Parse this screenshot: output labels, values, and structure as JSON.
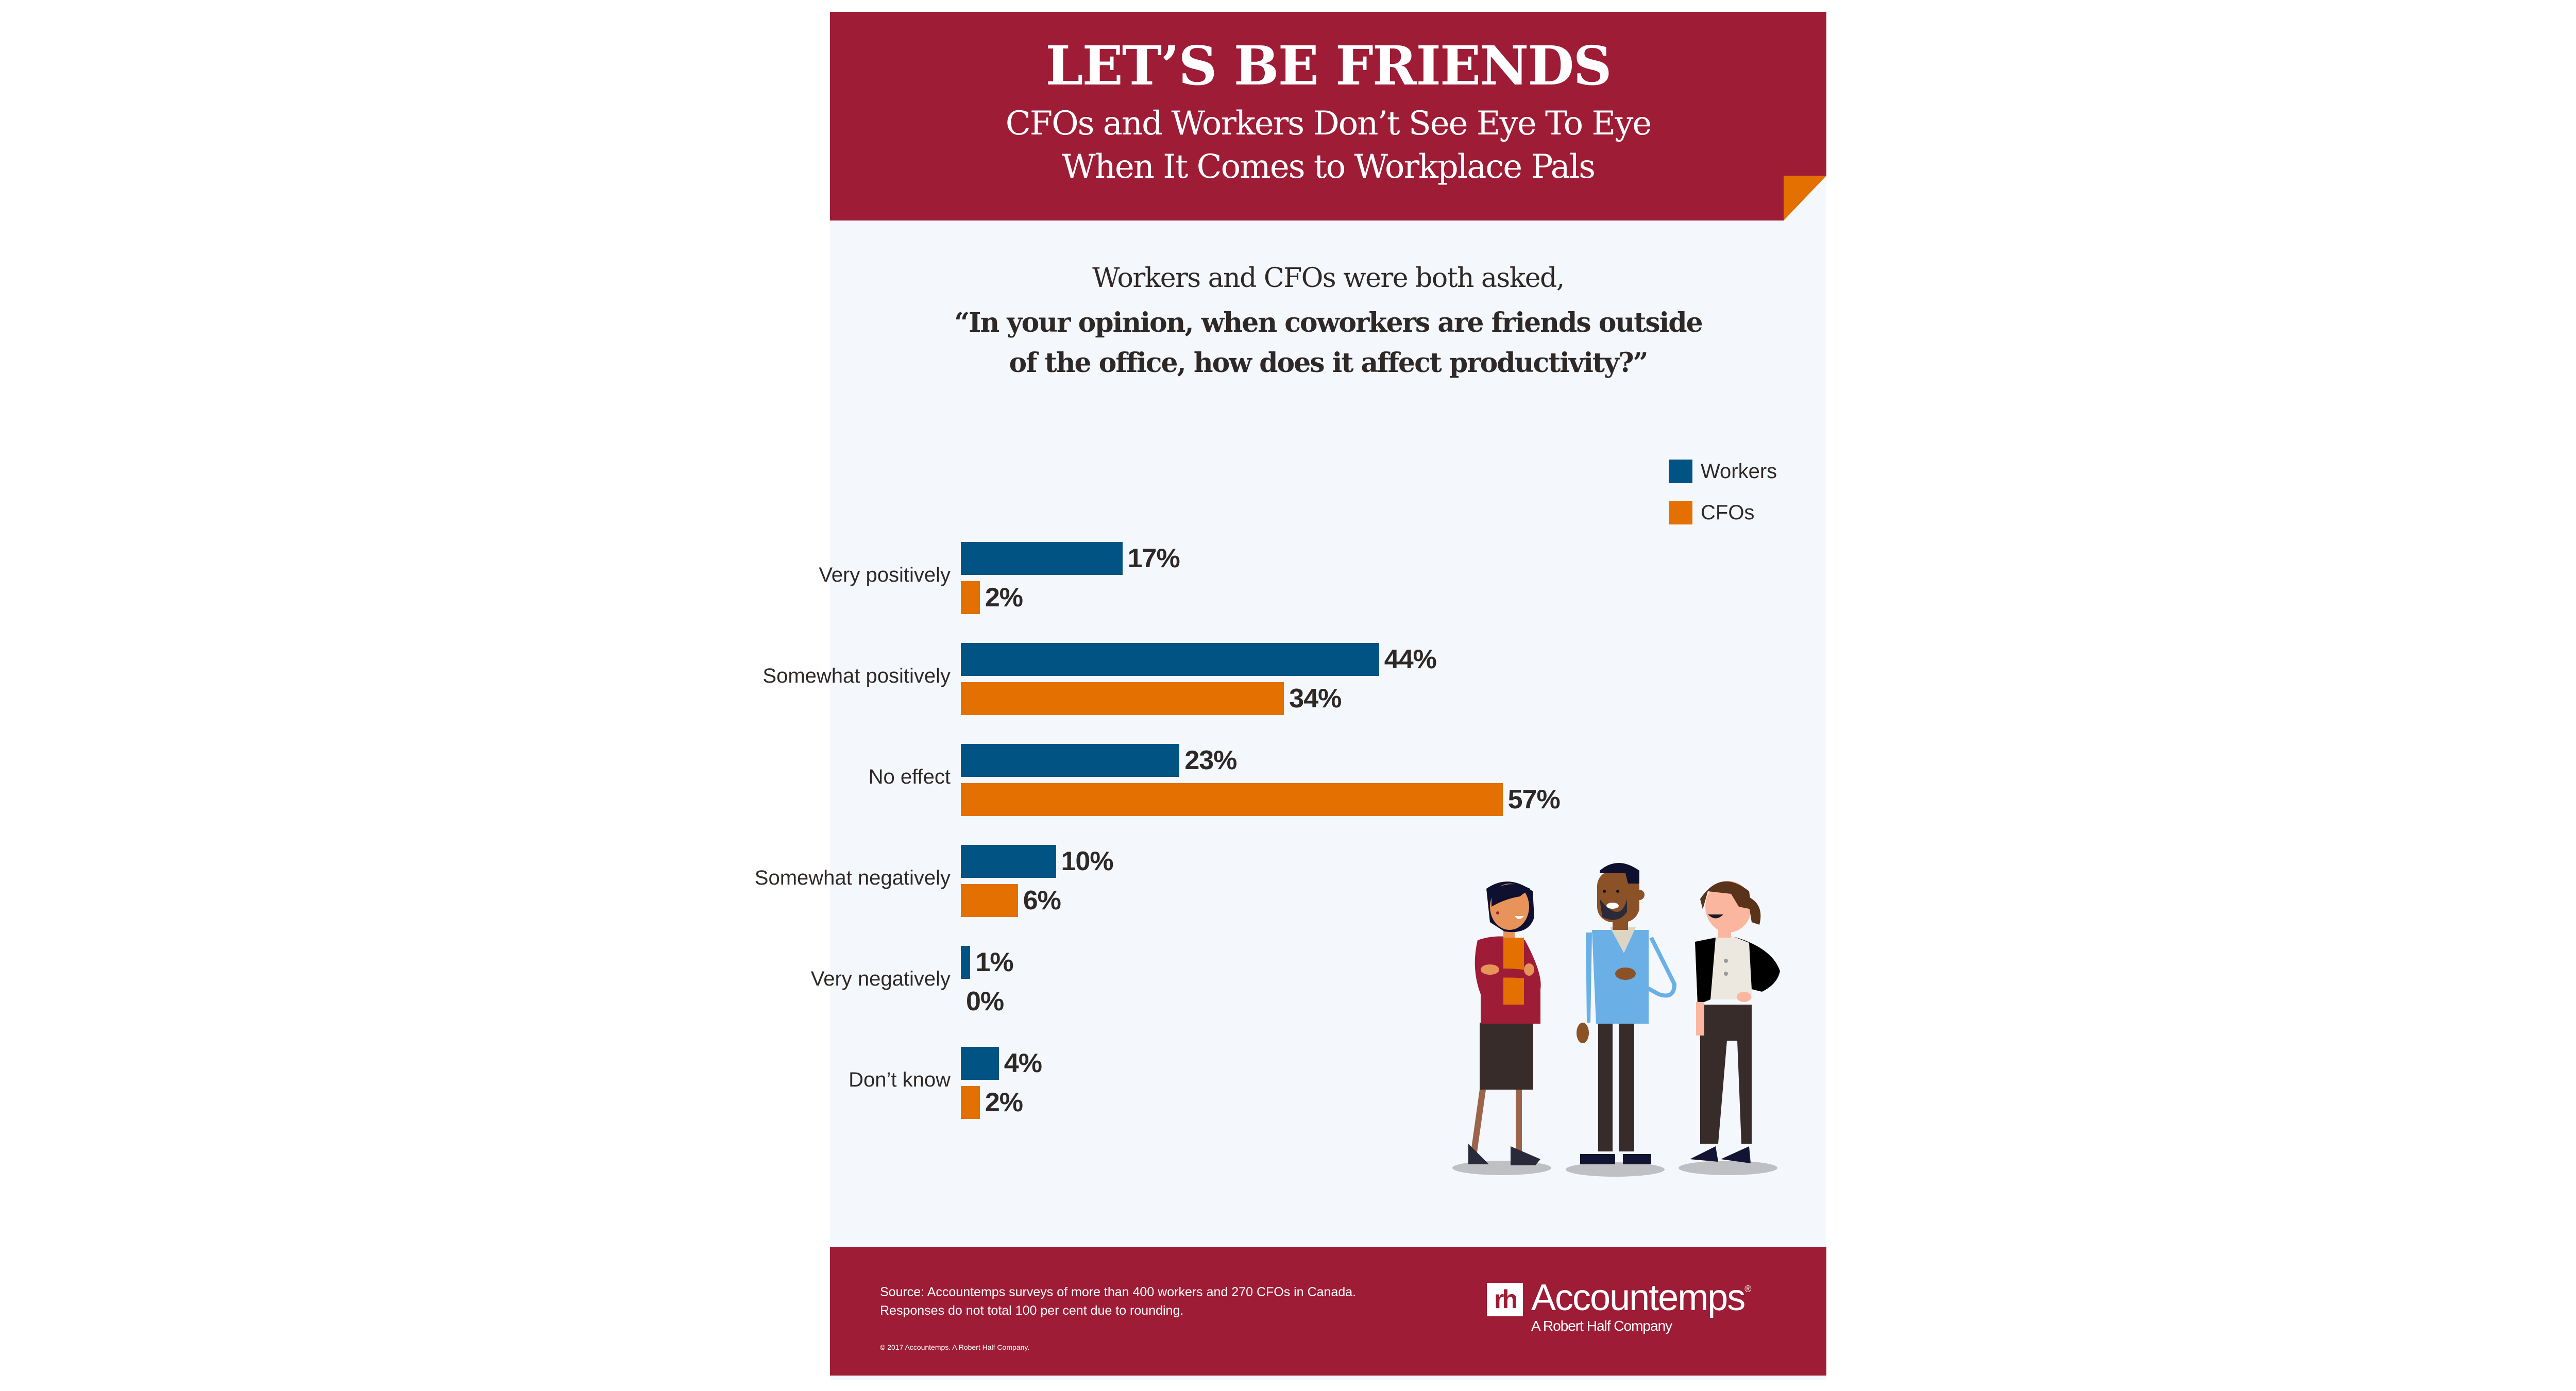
{
  "header": {
    "title": "LET’S BE FRIENDS",
    "subtitle_line1": "CFOs and Workers Don’t See Eye To Eye",
    "subtitle_line2": "When It Comes to Workplace Pals"
  },
  "question": {
    "intro": "Workers and CFOs were both asked,",
    "line1": "“In your opinion, when coworkers are friends outside",
    "line2": "of the office, how does it affect productivity?”"
  },
  "legend": [
    {
      "label": "Workers",
      "color": "#005382"
    },
    {
      "label": "CFOs",
      "color": "#e37000"
    }
  ],
  "colors": {
    "brand": "#9e1c35",
    "accent": "#e37000",
    "workers": "#005382",
    "cfos": "#e37000",
    "background": "#f4f8fc",
    "text": "#2e2826"
  },
  "chart_data": {
    "type": "bar",
    "orientation": "horizontal",
    "title": "In your opinion, when coworkers are friends outside of the office, how does it affect productivity?",
    "categories": [
      "Very positively",
      "Somewhat positively",
      "No effect",
      "Somewhat negatively",
      "Very negatively",
      "Don’t know"
    ],
    "series": [
      {
        "name": "Workers",
        "values": [
          17,
          44,
          23,
          10,
          1,
          4
        ],
        "labels": [
          "17%",
          "44%",
          "23%",
          "10%",
          "1%",
          "4%"
        ]
      },
      {
        "name": "CFOs",
        "values": [
          2,
          34,
          57,
          6,
          0,
          2
        ],
        "labels": [
          "2%",
          "34%",
          "57%",
          "6%",
          "0%",
          "2%"
        ]
      }
    ],
    "xlabel": "",
    "ylabel": "",
    "unit": "%",
    "grid": false,
    "legend_position": "top-right",
    "data_labels": true
  },
  "footer": {
    "source_line1": "Source: Accountemps surveys of more than 400 workers and 270 CFOs in Canada.",
    "source_line2": "Responses do not total 100 per cent due to rounding.",
    "copyright": "© 2017 Accountemps. A Robert Half Company.",
    "logo_mark": "rh",
    "logo_name": "Accountemps",
    "logo_reg": "®",
    "logo_sub": "A Robert Half Company"
  },
  "illustration": {
    "description": "Three smiling coworkers standing together"
  }
}
